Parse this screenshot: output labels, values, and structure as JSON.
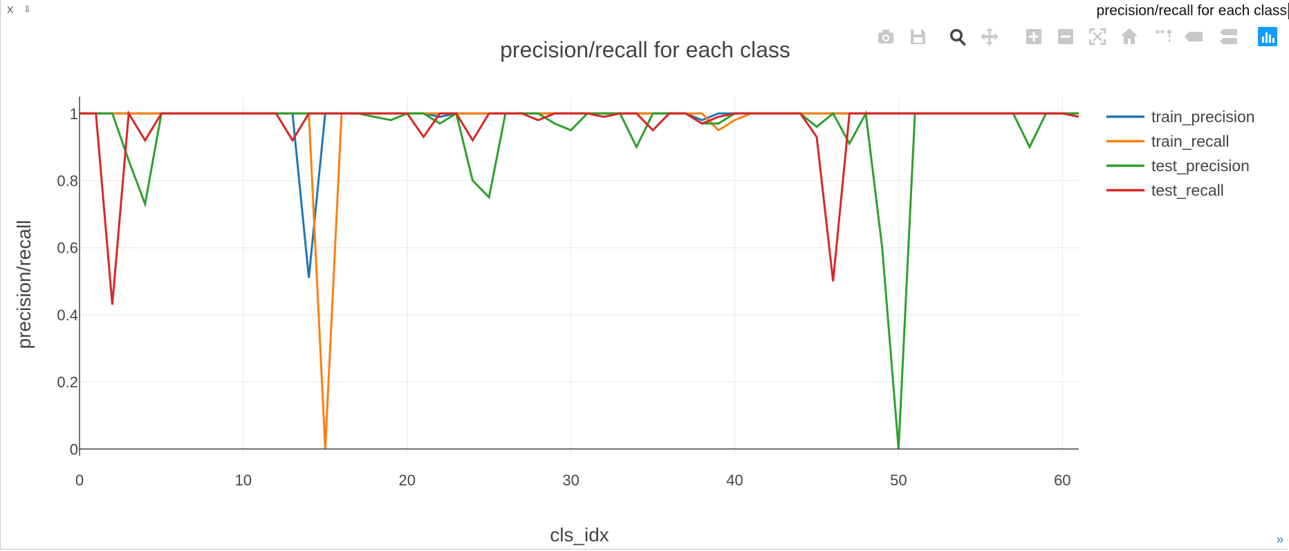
{
  "window": {
    "title": "precision/recall for each class",
    "close_label": "X",
    "pin_label": "⇩",
    "resize_label": "»"
  },
  "modebar": [
    {
      "name": "download-plot-png",
      "icon": "camera-icon",
      "active": false
    },
    {
      "name": "save-plot",
      "icon": "floppy-icon",
      "active": false
    },
    {
      "name": "zoom",
      "icon": "zoom-icon",
      "active": true
    },
    {
      "name": "pan",
      "icon": "move-icon",
      "active": false
    },
    {
      "name": "zoom-in",
      "icon": "plus-box-icon",
      "active": false
    },
    {
      "name": "zoom-out",
      "icon": "minus-box-icon",
      "active": false
    },
    {
      "name": "autoscale",
      "icon": "autoscale-icon",
      "active": false
    },
    {
      "name": "reset-axes",
      "icon": "home-icon",
      "active": false
    },
    {
      "name": "toggle-spikelines",
      "icon": "spikelines-icon",
      "active": false
    },
    {
      "name": "hover-closest",
      "icon": "tag-icon",
      "active": false
    },
    {
      "name": "hover-compare",
      "icon": "double-tag-icon",
      "active": false
    },
    {
      "name": "plotly-logo",
      "icon": "bar-chart-logo-icon",
      "active": true
    }
  ],
  "colors": {
    "train_precision": "#1f77b4",
    "train_recall": "#ff7f0e",
    "test_precision": "#2ca02c",
    "test_recall": "#d62728",
    "modebar_icon": "#c8c8c8",
    "modebar_active": "#444444",
    "logo": "#119dff"
  },
  "chart_data": {
    "type": "line",
    "title": "precision/recall for each class",
    "xlabel": "cls_idx",
    "ylabel": "precision/recall",
    "xlim": [
      0,
      61
    ],
    "ylim": [
      -0.02,
      1.05
    ],
    "xticks": [
      0,
      10,
      20,
      30,
      40,
      50,
      60
    ],
    "yticks": [
      0,
      0.2,
      0.4,
      0.6,
      0.8,
      1
    ],
    "ytick_labels": [
      "0",
      "0.2",
      "0.4",
      "0.6",
      "0.8",
      "1"
    ],
    "grid": true,
    "legend_position": "top-right",
    "x": [
      0,
      1,
      2,
      3,
      4,
      5,
      6,
      7,
      8,
      9,
      10,
      11,
      12,
      13,
      14,
      15,
      16,
      17,
      18,
      19,
      20,
      21,
      22,
      23,
      24,
      25,
      26,
      27,
      28,
      29,
      30,
      31,
      32,
      33,
      34,
      35,
      36,
      37,
      38,
      39,
      40,
      41,
      42,
      43,
      44,
      45,
      46,
      47,
      48,
      49,
      50,
      51,
      52,
      53,
      54,
      55,
      56,
      57,
      58,
      59,
      60,
      61
    ],
    "series": [
      {
        "name": "train_precision",
        "values": [
          1,
          1,
          1,
          1,
          1,
          1,
          1,
          1,
          1,
          1,
          1,
          1,
          1,
          1,
          0.51,
          1,
          1,
          1,
          1,
          1,
          1,
          1,
          0.99,
          1,
          1,
          1,
          1,
          1,
          1,
          1,
          1,
          1,
          1,
          1,
          1,
          1,
          1,
          1,
          0.98,
          1,
          1,
          1,
          1,
          1,
          1,
          1,
          1,
          1,
          1,
          1,
          1,
          1,
          1,
          1,
          1,
          1,
          1,
          1,
          1,
          1,
          1,
          1
        ]
      },
      {
        "name": "train_recall",
        "values": [
          1,
          1,
          1,
          1,
          1,
          1,
          1,
          1,
          1,
          1,
          1,
          1,
          1,
          1,
          1,
          0,
          1,
          1,
          1,
          1,
          1,
          1,
          1,
          1,
          1,
          1,
          1,
          1,
          1,
          1,
          1,
          1,
          1,
          1,
          1,
          1,
          1,
          1,
          1,
          0.95,
          0.98,
          1,
          1,
          1,
          1,
          1,
          1,
          1,
          1,
          1,
          1,
          1,
          1,
          1,
          1,
          1,
          1,
          1,
          1,
          1,
          1,
          1
        ]
      },
      {
        "name": "test_precision",
        "values": [
          1,
          1,
          1,
          0.86,
          0.73,
          1,
          1,
          1,
          1,
          1,
          1,
          1,
          1,
          1,
          1,
          1,
          1,
          1,
          0.99,
          0.98,
          1,
          1,
          0.97,
          1,
          0.8,
          0.75,
          1,
          1,
          1,
          0.97,
          0.95,
          1,
          1,
          1,
          0.9,
          1,
          1,
          1,
          0.97,
          0.97,
          1,
          1,
          1,
          1,
          1,
          0.96,
          1,
          0.91,
          1,
          0.6,
          0,
          1,
          1,
          1,
          1,
          1,
          1,
          1,
          0.9,
          1,
          1,
          1
        ]
      },
      {
        "name": "test_recall",
        "values": [
          1,
          1,
          0.43,
          1,
          0.92,
          1,
          1,
          1,
          1,
          1,
          1,
          1,
          1,
          0.92,
          1,
          1,
          1,
          1,
          1,
          1,
          1,
          0.93,
          1,
          1,
          0.92,
          1,
          1,
          1,
          0.98,
          1,
          1,
          1,
          0.99,
          1,
          1,
          0.95,
          1,
          1,
          0.97,
          0.99,
          1,
          1,
          1,
          1,
          1,
          0.93,
          0.5,
          1,
          1,
          1,
          1,
          1,
          1,
          1,
          1,
          1,
          1,
          1,
          1,
          1,
          1,
          0.99
        ]
      }
    ]
  }
}
